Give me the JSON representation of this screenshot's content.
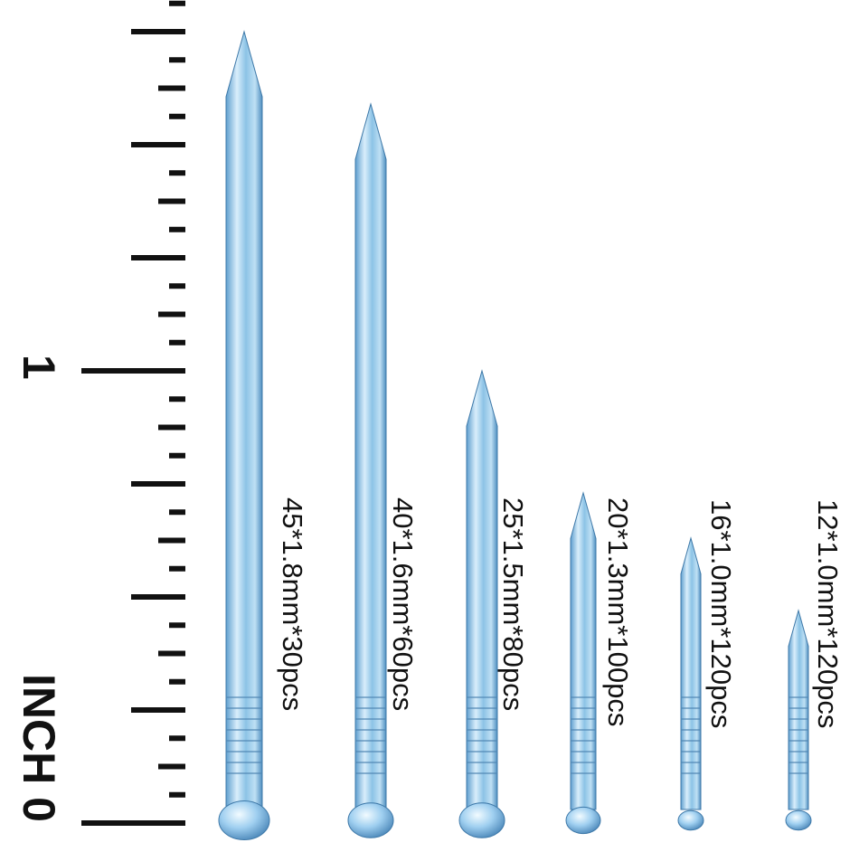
{
  "ruler": {
    "unit_label": "INCH 0",
    "mark_1": "1"
  },
  "nails": [
    {
      "label": "45*1.8mm*30pcs"
    },
    {
      "label": "40*1.6mm*60pcs"
    },
    {
      "label": "25*1.5mm*80pcs"
    },
    {
      "label": "20*1.3mm*100pcs"
    },
    {
      "label": "16*1.0mm*120pcs"
    },
    {
      "label": "12*1.0mm*120pcs"
    }
  ]
}
